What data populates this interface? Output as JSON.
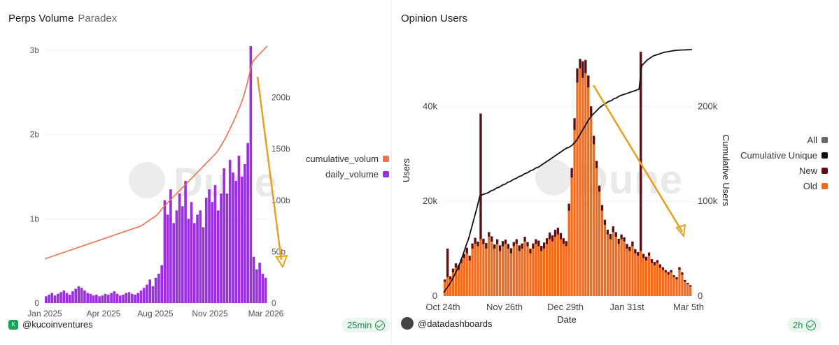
{
  "left": {
    "title": "Perps Volume",
    "subtitle": "Paradex",
    "watermark": "Dune",
    "user": "@kucoinventures",
    "refresh": "25min",
    "legend": [
      {
        "label": "cumulative_volum",
        "color": "#f0704a"
      },
      {
        "label": "daily_volume",
        "color": "#9b30e0"
      }
    ]
  },
  "right": {
    "title": "Opinion Users",
    "watermark": "Dune",
    "user": "@datadashboards",
    "refresh": "2h",
    "legend": [
      {
        "label": "All",
        "color": "#666666"
      },
      {
        "label": "Cumulative Unique",
        "color": "#111111"
      },
      {
        "label": "New",
        "color": "#5a1010"
      },
      {
        "label": "Old",
        "color": "#f26a1b"
      }
    ]
  },
  "chart_data": [
    {
      "type": "bar",
      "title": "Perps Volume",
      "xlabel": "",
      "ylabel": "",
      "x_ticks": [
        "Jan 2025",
        "Apr 2025",
        "Aug 2025",
        "Nov 2025",
        "Mar 2026"
      ],
      "y_left_ticks": [
        "0",
        "1b",
        "2b",
        "3b"
      ],
      "y_right_ticks": [
        "0",
        "50b",
        "100b",
        "150b",
        "200b"
      ],
      "ylim_left": [
        0,
        3.05
      ],
      "ylim_right": [
        0,
        250
      ],
      "series": [
        {
          "name": "daily_volume",
          "axis": "left",
          "color": "#9b30e0",
          "values": [
            0.08,
            0.1,
            0.12,
            0.09,
            0.11,
            0.13,
            0.15,
            0.12,
            0.1,
            0.14,
            0.17,
            0.2,
            0.18,
            0.15,
            0.12,
            0.11,
            0.09,
            0.1,
            0.08,
            0.09,
            0.11,
            0.1,
            0.12,
            0.14,
            0.11,
            0.09,
            0.1,
            0.12,
            0.13,
            0.11,
            0.1,
            0.12,
            0.15,
            0.18,
            0.22,
            0.28,
            0.2,
            0.3,
            0.35,
            0.45,
            1.22,
            1.05,
            1.35,
            0.95,
            1.1,
            1.3,
            1.15,
            1.45,
            1.0,
            1.2,
            0.95,
            1.05,
            1.1,
            0.9,
            1.25,
            1.35,
            1.2,
            1.4,
            1.1,
            1.3,
            1.6,
            1.3,
            1.7,
            1.55,
            1.45,
            1.75,
            1.5,
            1.65,
            1.9,
            3.05,
            0.55,
            0.4,
            0.48,
            0.35,
            0.3
          ]
        },
        {
          "name": "cumulative_volume",
          "axis": "right",
          "type": "line",
          "color": "#f0704a",
          "values": [
            43,
            44,
            45,
            46,
            47,
            48,
            49,
            50,
            51,
            52,
            53,
            54,
            55,
            56,
            57,
            58,
            59,
            60,
            61,
            62,
            63,
            64,
            65,
            66,
            67,
            68,
            69,
            70,
            71,
            72,
            73,
            74,
            75,
            77,
            79,
            81,
            83,
            85,
            88,
            92,
            95,
            98,
            101,
            104,
            107,
            110,
            113,
            116,
            119,
            122,
            125,
            128,
            131,
            134,
            137,
            140,
            143,
            146,
            150,
            155,
            160,
            166,
            172,
            178,
            185,
            192,
            200,
            210,
            222,
            234,
            238,
            241,
            244,
            247,
            250
          ]
        }
      ]
    },
    {
      "type": "bar",
      "title": "Opinion Users",
      "xlabel": "Date",
      "ylabel": "Users",
      "ylabel_right": "Cumulative Users",
      "x_ticks": [
        "Oct 24th",
        "Nov 26th",
        "Dec 29th",
        "Jan 31st",
        "Mar 5th"
      ],
      "y_left_ticks": [
        "0",
        "20k",
        "40k"
      ],
      "y_right_ticks": [
        "0",
        "100k",
        "200k"
      ],
      "ylim_left": [
        0,
        53000
      ],
      "ylim_right": [
        0,
        265000
      ],
      "series": [
        {
          "name": "Old",
          "axis": "left",
          "color": "#f26a1b",
          "values": [
            3000,
            4000,
            3500,
            5000,
            6000,
            5500,
            7000,
            8000,
            9000,
            7500,
            10000,
            11000,
            10500,
            12000,
            11000,
            10000,
            12500,
            11500,
            10000,
            11000,
            9500,
            10500,
            11000,
            10000,
            9000,
            10500,
            11000,
            9500,
            10000,
            11500,
            10500,
            9000,
            10000,
            11000,
            10500,
            9500,
            10000,
            11000,
            12000,
            11500,
            12500,
            13000,
            12000,
            11000,
            10500,
            18000,
            25000,
            35000,
            45000,
            48000,
            46000,
            47000,
            44000,
            38000,
            32000,
            27000,
            22000,
            18000,
            15000,
            13000,
            12000,
            13500,
            12500,
            11000,
            12000,
            11500,
            10000,
            9500,
            10500,
            9000,
            8500,
            9500,
            8000,
            7500,
            8500,
            7000,
            6500,
            7000,
            6000,
            5500,
            5000,
            4500,
            5000,
            4000,
            3500,
            5500,
            4500,
            3000,
            2500,
            2000
          ]
        },
        {
          "name": "New",
          "axis": "left",
          "color": "#5a1010",
          "values": [
            500,
            6000,
            700,
            800,
            900,
            1000,
            800,
            900,
            1200,
            1000,
            1100,
            1300,
            1000,
            26500,
            1100,
            1200,
            1000,
            1100,
            900,
            1000,
            1200,
            1100,
            900,
            1000,
            1100,
            900,
            1000,
            1200,
            1100,
            1000,
            900,
            1000,
            1100,
            1000,
            1200,
            1100,
            1300,
            1200,
            1400,
            1300,
            1500,
            1400,
            1300,
            1200,
            1100,
            1500,
            2000,
            2500,
            3000,
            2000,
            3500,
            2800,
            2500,
            2000,
            1800,
            1500,
            1300,
            1200,
            1100,
            1000,
            1100,
            1200,
            1000,
            1100,
            1000,
            900,
            1000,
            900,
            1000,
            900,
            800,
            42000,
            900,
            800,
            700,
            800,
            700,
            600,
            700,
            600,
            500,
            600,
            500,
            400,
            500,
            600,
            500,
            400,
            300,
            300
          ]
        },
        {
          "name": "Cumulative Unique",
          "axis": "right",
          "type": "line",
          "color": "#111111",
          "values": [
            3500,
            8000,
            12000,
            17000,
            23000,
            29000,
            36000,
            44000,
            53000,
            61000,
            72000,
            83000,
            94000,
            106000,
            107000,
            108000,
            109000,
            111000,
            112000,
            114000,
            115000,
            117000,
            118000,
            120000,
            121000,
            123000,
            124000,
            126000,
            127000,
            129000,
            130000,
            132000,
            133000,
            135000,
            136000,
            138000,
            140000,
            142000,
            144000,
            146000,
            148000,
            150000,
            152000,
            154000,
            156000,
            157000,
            159000,
            162000,
            166000,
            171000,
            176000,
            181000,
            186000,
            190000,
            193000,
            196000,
            199000,
            201000,
            203000,
            205000,
            206000,
            208000,
            209000,
            211000,
            212000,
            213000,
            214000,
            215000,
            216000,
            217000,
            218000,
            243000,
            246000,
            249000,
            251000,
            253000,
            254000,
            255000,
            256000,
            257000,
            257500,
            258000,
            258500,
            259000,
            259200,
            259400,
            259500,
            259600,
            259700,
            259800
          ]
        }
      ]
    }
  ]
}
